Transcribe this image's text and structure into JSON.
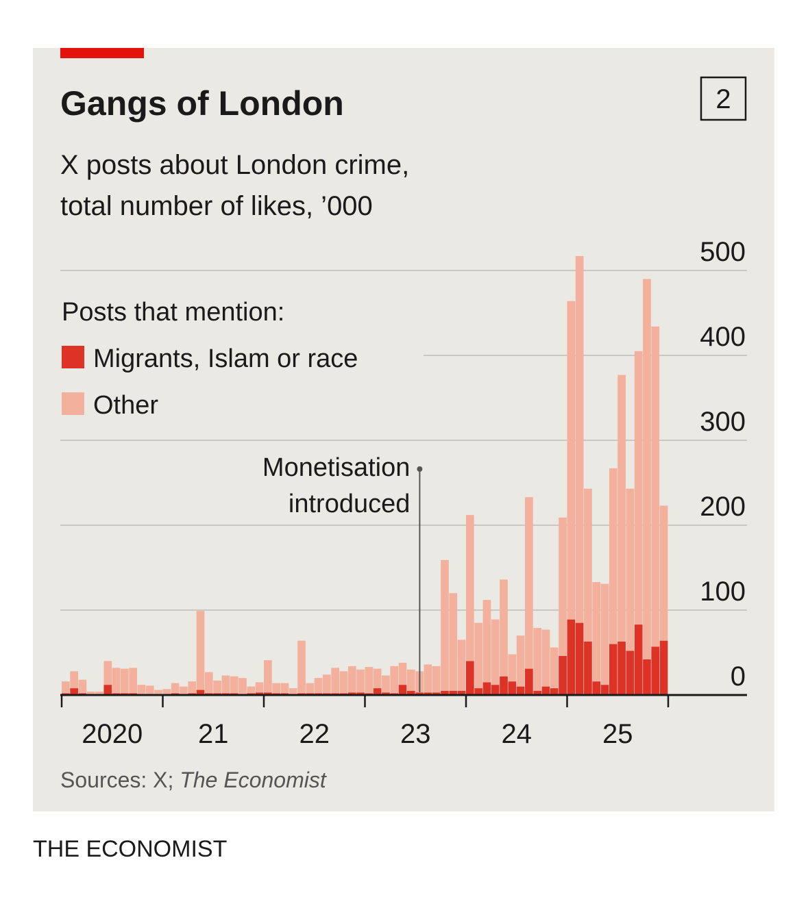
{
  "chart_data": {
    "type": "stacked-bar",
    "title": "Gangs of London",
    "chart_number": "2",
    "subtitle": [
      "X posts about London crime,",
      "total number of likes, ’000"
    ],
    "legend_title": "Posts that mention:",
    "legend_position": "top-left",
    "years": [
      "2020",
      "21",
      "22",
      "23",
      "24",
      "25"
    ],
    "categories": [
      null,
      null,
      null,
      null,
      null,
      null,
      null,
      null,
      null,
      null,
      null,
      null,
      null,
      null,
      null,
      null,
      null,
      null,
      null,
      null,
      null,
      null,
      null,
      null,
      null,
      null,
      null,
      null,
      null,
      null,
      null,
      null,
      null,
      null,
      null,
      null,
      null,
      null,
      null,
      null,
      null,
      null,
      null,
      null,
      null,
      null,
      null,
      null,
      null,
      null,
      null,
      null,
      null,
      null,
      null,
      null,
      null,
      null,
      null,
      null,
      null,
      null,
      null,
      null,
      null,
      null,
      null,
      null,
      null,
      null,
      null,
      null
    ],
    "series": [
      {
        "name": "Migrants, Islam or race",
        "color": "#dc3326",
        "values": [
          2,
          8,
          2,
          1,
          1,
          12,
          2,
          2,
          2,
          1,
          1,
          1,
          1,
          2,
          1,
          2,
          6,
          2,
          2,
          2,
          2,
          1,
          2,
          3,
          3,
          2,
          2,
          1,
          2,
          2,
          2,
          2,
          2,
          2,
          3,
          3,
          2,
          8,
          3,
          2,
          12,
          5,
          3,
          3,
          3,
          5,
          5,
          5,
          40,
          8,
          15,
          12,
          22,
          16,
          10,
          31,
          5,
          10,
          8,
          46,
          89,
          85,
          63,
          16,
          12,
          60,
          63,
          52,
          83,
          42,
          57,
          64
        ]
      },
      {
        "name": "Other",
        "color": "#f2b09d",
        "values": [
          14,
          20,
          16,
          3,
          3,
          28,
          30,
          29,
          30,
          11,
          10,
          5,
          6,
          12,
          9,
          14,
          93,
          25,
          15,
          21,
          20,
          19,
          8,
          12,
          38,
          12,
          12,
          7,
          62,
          12,
          18,
          22,
          30,
          26,
          31,
          27,
          31,
          23,
          20,
          32,
          26,
          25,
          25,
          33,
          31,
          154,
          115,
          60,
          172,
          77,
          97,
          77,
          114,
          32,
          60,
          202,
          74,
          67,
          48,
          163,
          375,
          432,
          180,
          117,
          119,
          207,
          314,
          191,
          322,
          448,
          377,
          159
        ]
      }
    ],
    "ylim": [
      0,
      500
    ],
    "yticks": [
      0,
      100,
      200,
      300,
      400,
      500
    ],
    "grid": true,
    "annotation": {
      "lines": [
        "Monetisation",
        "introduced"
      ],
      "category_index": 42
    },
    "source": "Sources: X;",
    "source_italic": "The Economist"
  },
  "footer": "THE ECONOMIST"
}
